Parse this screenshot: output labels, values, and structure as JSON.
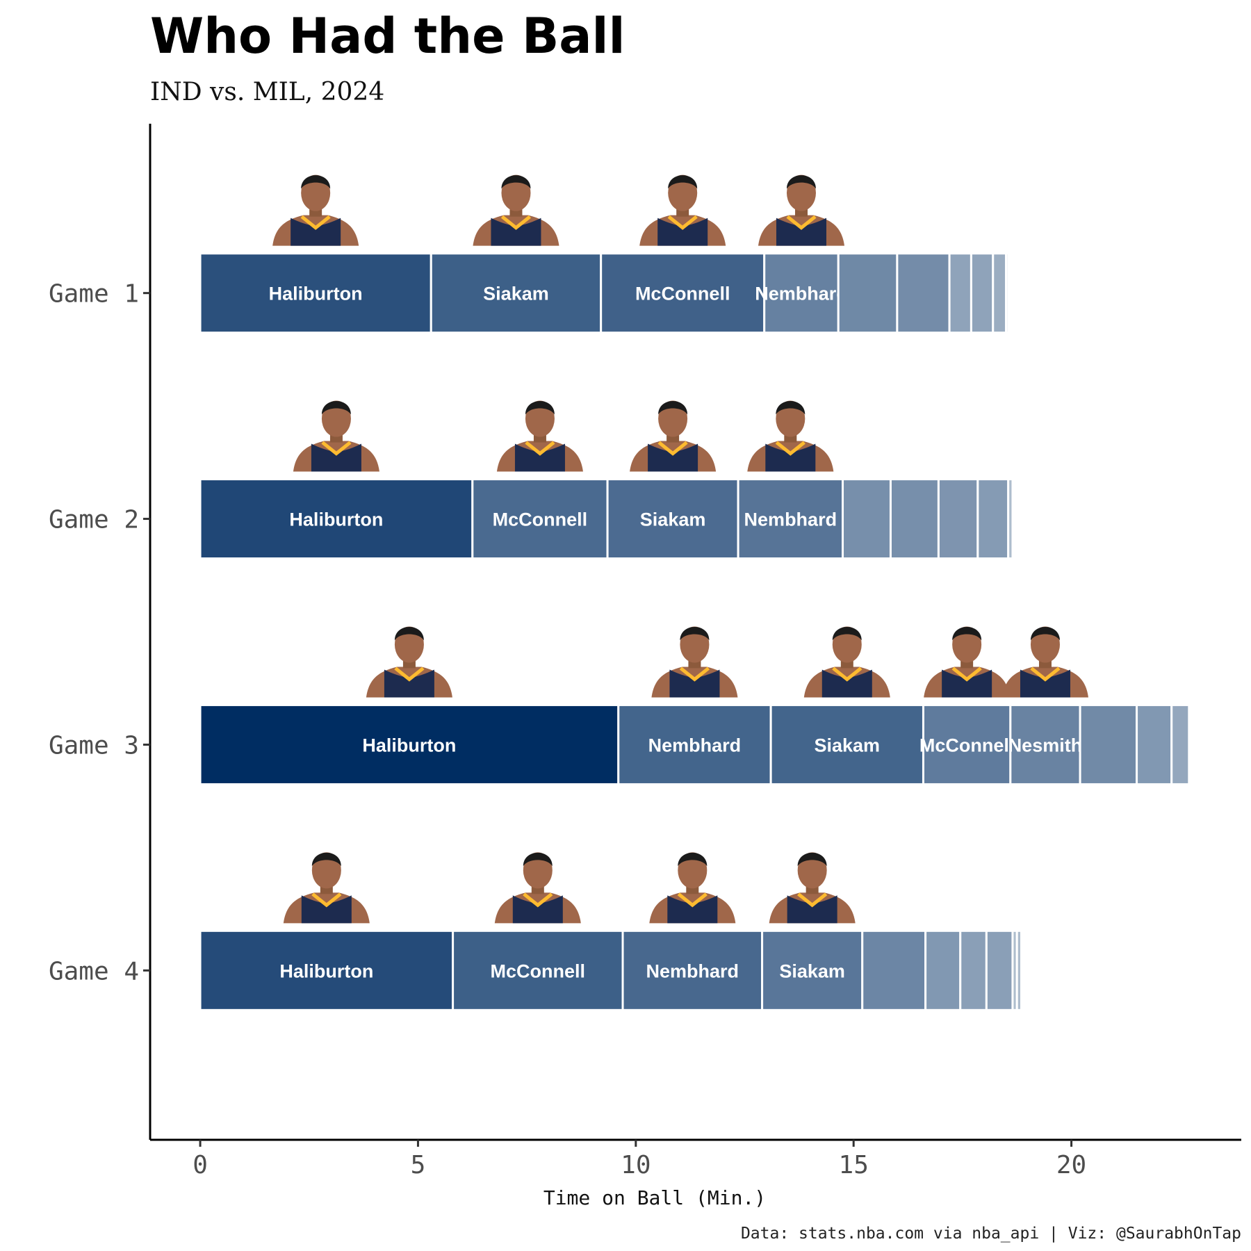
{
  "chart_data": {
    "type": "bar",
    "orientation": "horizontal-stacked",
    "title": "Who Had the Ball",
    "subtitle": "IND vs. MIL, 2024",
    "xlabel": "Time on Ball (Min.)",
    "ylabel": "",
    "xlim": [
      -1.15,
      23.9
    ],
    "x_ticks": [
      "0",
      "5",
      "10",
      "15",
      "20"
    ],
    "caption": "Data: stats.nba.com via nba_api | Viz: @SaurabhOnTap",
    "grid": false,
    "legend": "none",
    "categories": [
      "Game 1",
      "Game 2",
      "Game 3",
      "Game 4"
    ],
    "bar_color": "#002d62",
    "series": [
      {
        "name": "Game 1",
        "segments": [
          {
            "player": "Haliburton",
            "value": 5.3
          },
          {
            "player": "Siakam",
            "value": 3.9
          },
          {
            "player": "McConnell",
            "value": 3.75
          },
          {
            "player": "Nembhard",
            "value": 1.7
          },
          {
            "player": "",
            "value": 1.35
          },
          {
            "player": "",
            "value": 1.2
          },
          {
            "player": "",
            "value": 0.5
          },
          {
            "player": "",
            "value": 0.5
          },
          {
            "player": "",
            "value": 0.3
          },
          {
            "player": "",
            "value": 0.05
          }
        ]
      },
      {
        "name": "Game 2",
        "segments": [
          {
            "player": "Haliburton",
            "value": 6.25
          },
          {
            "player": "McConnell",
            "value": 3.1
          },
          {
            "player": "Siakam",
            "value": 3.0
          },
          {
            "player": "Nembhard",
            "value": 2.4
          },
          {
            "player": "",
            "value": 1.1
          },
          {
            "player": "",
            "value": 1.1
          },
          {
            "player": "",
            "value": 0.9
          },
          {
            "player": "",
            "value": 0.7
          },
          {
            "player": "",
            "value": 0.1
          }
        ]
      },
      {
        "name": "Game 3",
        "segments": [
          {
            "player": "Haliburton",
            "value": 9.6
          },
          {
            "player": "Nembhard",
            "value": 3.5
          },
          {
            "player": "Siakam",
            "value": 3.5
          },
          {
            "player": "McConnell",
            "value": 2.0
          },
          {
            "player": "Nesmith",
            "value": 1.6
          },
          {
            "player": "",
            "value": 1.3
          },
          {
            "player": "",
            "value": 0.8
          },
          {
            "player": "",
            "value": 0.4
          }
        ]
      },
      {
        "name": "Game 4",
        "segments": [
          {
            "player": "Haliburton",
            "value": 5.8
          },
          {
            "player": "McConnell",
            "value": 3.9
          },
          {
            "player": "Nembhard",
            "value": 3.2
          },
          {
            "player": "Siakam",
            "value": 2.3
          },
          {
            "player": "",
            "value": 1.45
          },
          {
            "player": "",
            "value": 0.8
          },
          {
            "player": "",
            "value": 0.6
          },
          {
            "player": "",
            "value": 0.6
          },
          {
            "player": "",
            "value": 0.1
          },
          {
            "player": "",
            "value": 0.1
          }
        ]
      }
    ]
  }
}
